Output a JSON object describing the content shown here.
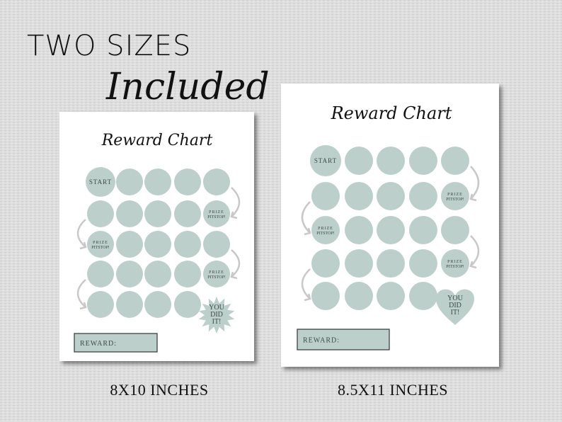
{
  "headline": {
    "line1": "TWO SIZES",
    "line2": "Included"
  },
  "colors": {
    "circle": "#bccfca",
    "arrow": "#c8c8c8",
    "page": "#ffffff",
    "background": "#dcdcdc"
  },
  "charts": [
    {
      "caption": "8X10 INCHES",
      "title": "Reward Chart",
      "start_label": "START",
      "prize_label_1": "PRIZE",
      "prize_label_2": "PITSTOP!",
      "finish_lines": [
        "YOU",
        "DID",
        "IT!"
      ],
      "finish_shape": "starburst",
      "reward_label": "REWARD:"
    },
    {
      "caption": "8.5X11 INCHES",
      "title": "Reward Chart",
      "start_label": "START",
      "prize_label_1": "PRIZE",
      "prize_label_2": "PITSTOP!",
      "finish_lines": [
        "YOU",
        "DID",
        "IT!"
      ],
      "finish_shape": "heart",
      "reward_label": "REWARD:"
    }
  ]
}
